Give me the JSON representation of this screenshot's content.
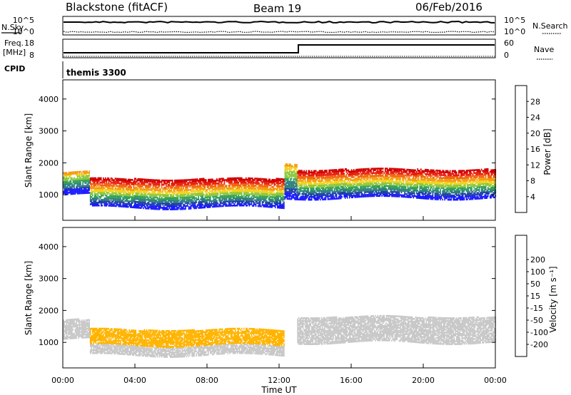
{
  "header": {
    "station": "Blackstone (fitACF)",
    "beam": "Beam 19",
    "date": "06/Feb/2016"
  },
  "ancillary": {
    "nsky_label": "N.Sky",
    "nsearch_label": "N.Search",
    "noise_ticks": [
      "10^5",
      "10^0"
    ],
    "freq_label_1": "Freq.",
    "freq_label_2": "[MHz]",
    "freq_ticks": [
      "18",
      "8"
    ],
    "nave_label": "Nave",
    "nave_ticks": [
      "60",
      "0"
    ],
    "cpid_label": "CPID",
    "cpid_value": "themis 3300"
  },
  "colors": {
    "power": [
      "#1a1aff",
      "#1f3fa8",
      "#2f7f7f",
      "#33a05a",
      "#8cc83c",
      "#f0d21e",
      "#f59a12",
      "#f06414",
      "#e61e0f",
      "#d20000"
    ],
    "velocity": [
      "#e60000",
      "#ff3c00",
      "#ff7800",
      "#ffb400",
      "#c8c8c8",
      "#c8c8c8",
      "#64c832",
      "#00a050",
      "#006496",
      "#0000c8"
    ]
  },
  "chart_data": [
    {
      "type": "heatmap",
      "panel": "power",
      "ylabel": "Slant Range [km]",
      "yticks": [
        "1000",
        "2000",
        "3000",
        "4000"
      ],
      "ylim": [
        200,
        4600
      ],
      "xlim": [
        0,
        24
      ],
      "colorbar_label": "Power [dB]",
      "colorbar_ticks": [
        "4",
        "8",
        "12",
        "16",
        "20",
        "24",
        "28"
      ],
      "scatter_bands": [
        {
          "t_start": 0.0,
          "t_end": 1.5,
          "range_low": 1000,
          "range_high": 1700,
          "intensity": "medium"
        },
        {
          "t_start": 1.5,
          "t_end": 12.3,
          "range_low": 600,
          "range_high": 1500,
          "intensity": "high"
        },
        {
          "t_start": 12.3,
          "t_end": 13.0,
          "range_low": 900,
          "range_high": 2000,
          "intensity": "medium"
        },
        {
          "t_start": 13.0,
          "t_end": 24.0,
          "range_low": 900,
          "range_high": 1800,
          "intensity": "high"
        }
      ]
    },
    {
      "type": "heatmap",
      "panel": "velocity",
      "ylabel": "Slant Range [km]",
      "yticks": [
        "1000",
        "2000",
        "3000",
        "4000"
      ],
      "ylim": [
        200,
        4600
      ],
      "xlim": [
        0,
        24
      ],
      "xlabel": "Time UT",
      "xticks": [
        "00:00",
        "04:00",
        "08:00",
        "12:00",
        "16:00",
        "20:00",
        "00:00"
      ],
      "colorbar_label": "Velocity [m s⁻¹]",
      "colorbar_ticks": [
        "-200",
        "-100",
        "-50",
        "-15",
        "15",
        "50",
        "100",
        "200"
      ],
      "scatter_bands": [
        {
          "t_start": 0.0,
          "t_end": 1.5,
          "range_low": 1100,
          "range_high": 1700,
          "velocity": "near-zero"
        },
        {
          "t_start": 1.5,
          "t_end": 12.3,
          "range_low": 600,
          "range_high": 1400,
          "velocity": "-15 to -50"
        },
        {
          "t_start": 13.0,
          "t_end": 24.0,
          "range_low": 1000,
          "range_high": 1800,
          "velocity": "near-zero"
        }
      ]
    }
  ]
}
